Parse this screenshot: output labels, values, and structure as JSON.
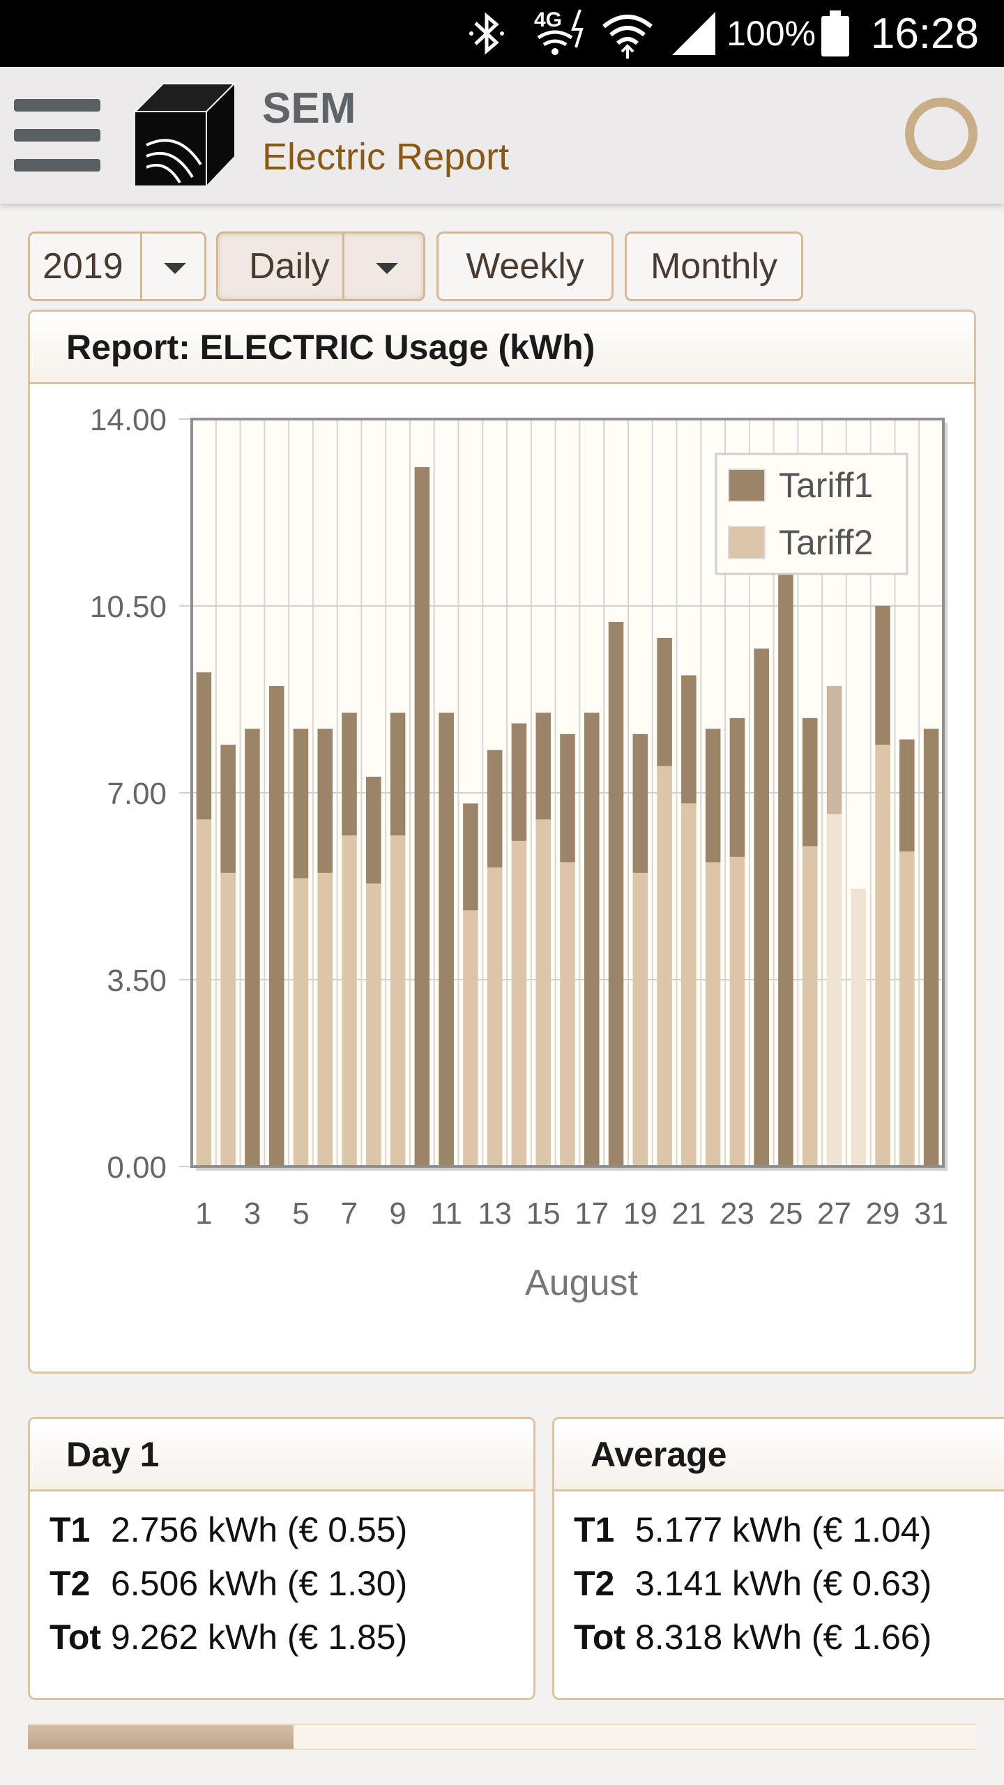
{
  "status_bar": {
    "time": "16:28",
    "battery_percent": "100%",
    "network_label": "4G",
    "icons": [
      "bluetooth-icon",
      "4g-data-icon",
      "wifi-icon",
      "cell-signal-icon",
      "battery-icon"
    ]
  },
  "app_bar": {
    "title": "SEM",
    "subtitle": "Electric Report",
    "menu_icon": "hamburger-menu-icon",
    "logo_icon": "cube-logo-icon",
    "status_icon": "loading-ring-icon"
  },
  "selectors": {
    "year": "2019",
    "mode": "Daily",
    "weekly_label": "Weekly",
    "monthly_label": "Monthly"
  },
  "report": {
    "title": "Report: ELECTRIC Usage (kWh)"
  },
  "colors": {
    "tariff1": "#9b8468",
    "tariff2": "#dbc6a9",
    "tariff2_light": "#efe4d3",
    "tariff1_light": "#c9b79f",
    "accent": "#8a5a15",
    "border": "#dcc3a3"
  },
  "chart_data": {
    "type": "bar",
    "stacked": true,
    "title": "",
    "xlabel": "August",
    "ylabel": "",
    "ylim": [
      0,
      14
    ],
    "yticks": [
      "0.00",
      "3.50",
      "7.00",
      "10.50",
      "14.00"
    ],
    "grid": true,
    "legend_position": "top-right",
    "categories": [
      1,
      2,
      3,
      4,
      5,
      6,
      7,
      8,
      9,
      10,
      11,
      12,
      13,
      14,
      15,
      16,
      17,
      18,
      19,
      20,
      21,
      22,
      23,
      24,
      25,
      26,
      27,
      28,
      29,
      30,
      31
    ],
    "xtick_labels": [
      "1",
      "3",
      "5",
      "7",
      "9",
      "11",
      "13",
      "15",
      "17",
      "19",
      "21",
      "23",
      "25",
      "27",
      "29",
      "31"
    ],
    "series": [
      {
        "name": "Tariff2",
        "values": [
          6.5,
          5.5,
          0,
          0,
          5.4,
          5.5,
          6.2,
          5.3,
          6.2,
          0,
          0,
          4.8,
          5.6,
          6.1,
          6.5,
          5.7,
          0,
          0,
          5.5,
          7.5,
          6.8,
          5.7,
          5.8,
          0,
          0,
          6.0,
          6.6,
          5.2,
          7.9,
          5.9,
          0
        ]
      },
      {
        "name": "Tariff1",
        "values": [
          2.756,
          2.4,
          8.2,
          9.0,
          2.8,
          2.7,
          2.3,
          2.0,
          2.3,
          13.1,
          8.5,
          2.0,
          2.2,
          2.2,
          2.0,
          2.4,
          8.5,
          10.2,
          2.6,
          2.4,
          2.4,
          2.5,
          2.6,
          9.7,
          11.1,
          2.4,
          2.4,
          0,
          2.6,
          2.1,
          8.2
        ]
      }
    ]
  },
  "day_panel": {
    "title": "Day 1",
    "rows": [
      {
        "key": "T1",
        "value": "2.756 kWh (€ 0.55)"
      },
      {
        "key": "T2",
        "value": "6.506 kWh (€ 1.30)"
      },
      {
        "key": "Tot",
        "value": "9.262 kWh (€ 1.85)"
      }
    ]
  },
  "average_panel": {
    "title": "Average",
    "rows": [
      {
        "key": "T1",
        "value": "5.177 kWh (€ 1.04)"
      },
      {
        "key": "T2",
        "value": "3.141 kWh (€ 0.63)"
      },
      {
        "key": "Tot",
        "value": "8.318 kWh (€ 1.66)"
      }
    ]
  },
  "progress": {
    "fraction": 0.28
  }
}
